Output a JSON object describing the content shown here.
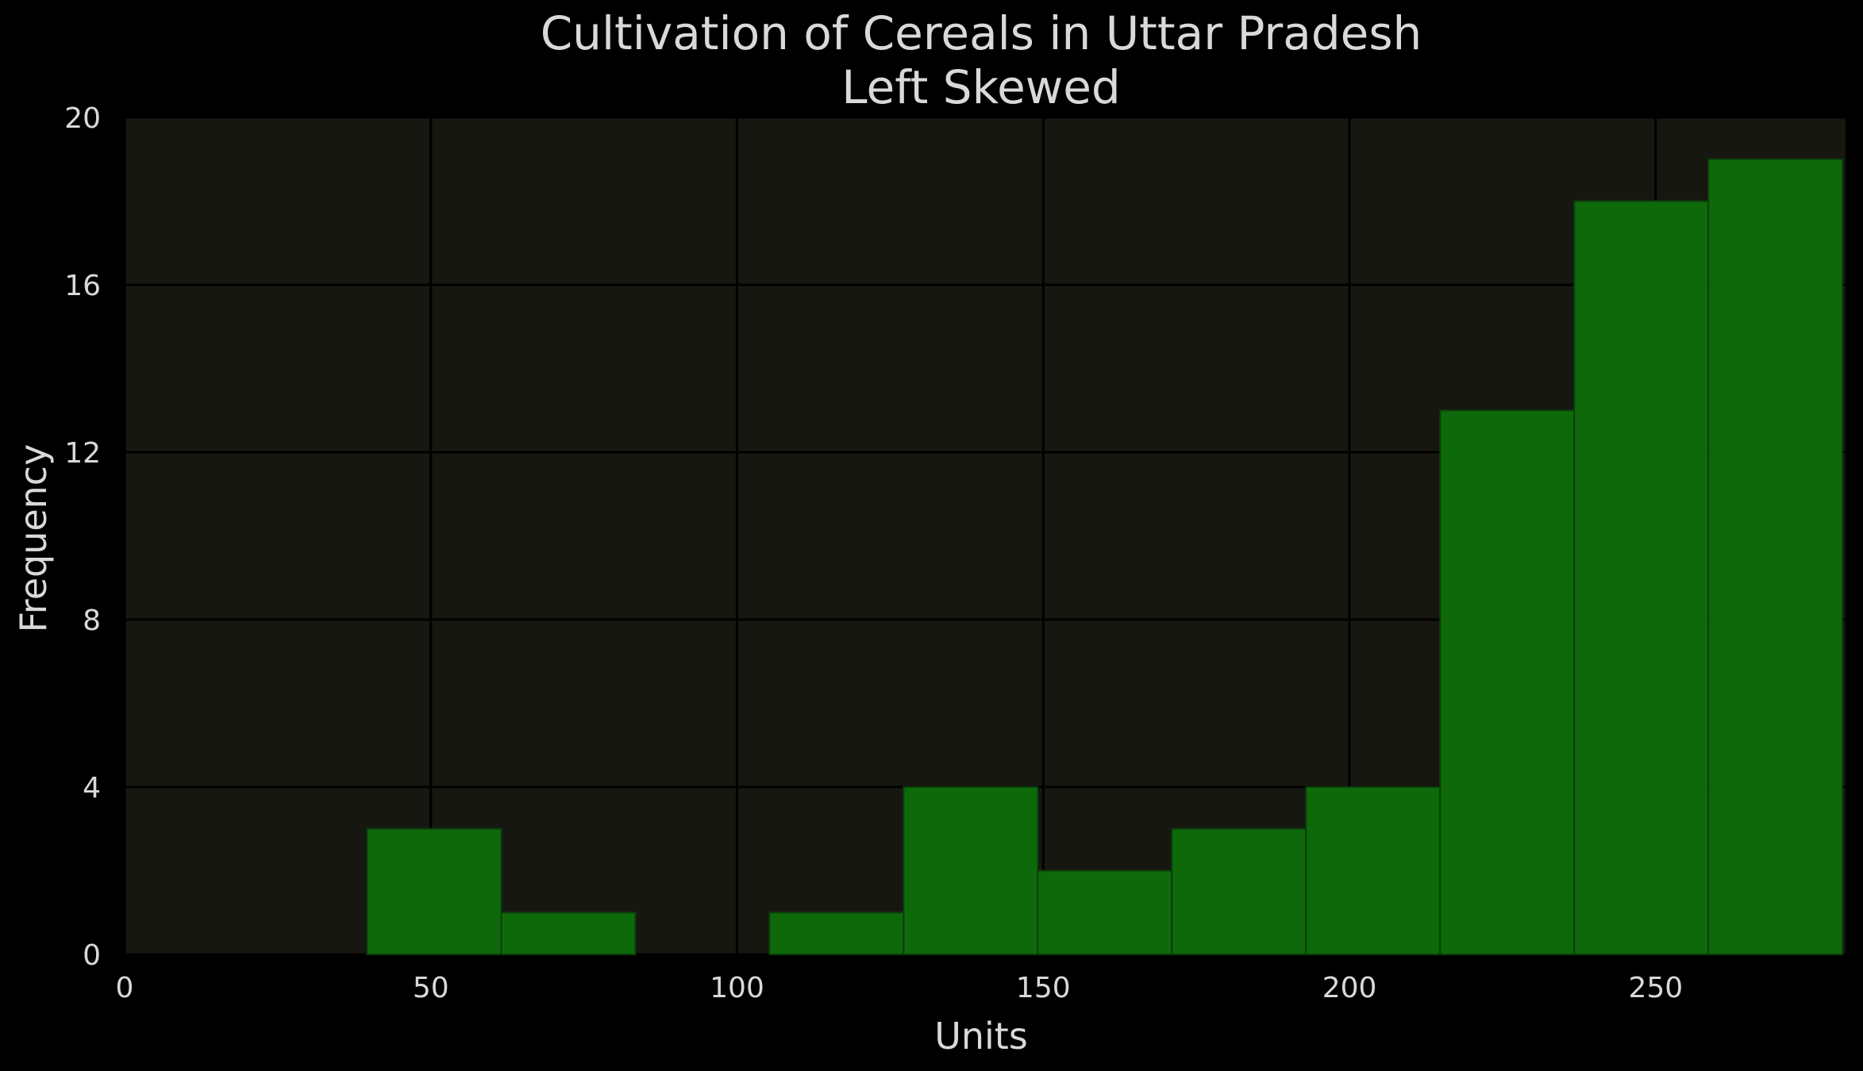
{
  "chart_data": {
    "type": "bar",
    "title": "Cultivation of Cereals in Uttar Pradesh",
    "subtitle": "Left Skewed",
    "xlabel": "Units",
    "ylabel": "Frequency",
    "xlim": [
      0,
      281
    ],
    "ylim": [
      0,
      20
    ],
    "xticks": [
      0,
      50,
      100,
      150,
      200,
      250
    ],
    "yticks": [
      0,
      4,
      8,
      12,
      16,
      20
    ],
    "grid": true,
    "colors": {
      "background": "#000000",
      "plot_area": "#171711",
      "bar": "#0e710a",
      "text": "#d9d9d9"
    },
    "bins": [
      {
        "start": 39.6,
        "end": 61.5,
        "value": 3
      },
      {
        "start": 61.5,
        "end": 83.4,
        "value": 1
      },
      {
        "start": 83.4,
        "end": 105.3,
        "value": 0
      },
      {
        "start": 105.3,
        "end": 127.2,
        "value": 1
      },
      {
        "start": 127.2,
        "end": 149.1,
        "value": 4
      },
      {
        "start": 149.1,
        "end": 171.0,
        "value": 2
      },
      {
        "start": 171.0,
        "end": 192.9,
        "value": 3
      },
      {
        "start": 192.9,
        "end": 214.8,
        "value": 4
      },
      {
        "start": 214.8,
        "end": 236.7,
        "value": 13
      },
      {
        "start": 236.7,
        "end": 258.6,
        "value": 18
      },
      {
        "start": 258.6,
        "end": 280.5,
        "value": 19
      }
    ]
  }
}
